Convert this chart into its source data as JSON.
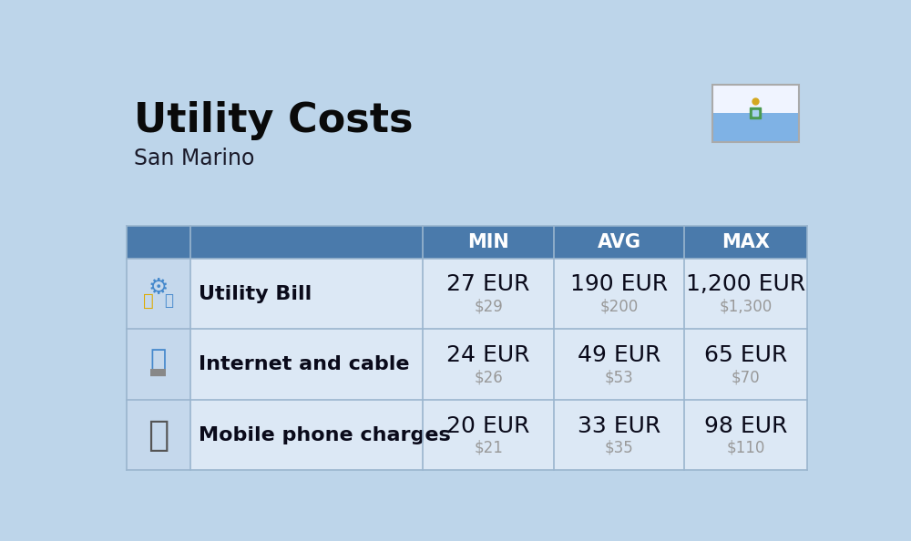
{
  "title": "Utility Costs",
  "subtitle": "San Marino",
  "background_color": "#bdd5ea",
  "header_color": "#4a7aab",
  "header_text_color": "#ffffff",
  "row_color_light": "#dce8f5",
  "icon_col_color": "#c5d8ec",
  "divider_color": "#9ab5ce",
  "title_color": "#0a0a0a",
  "subtitle_color": "#1a1a2a",
  "label_color": "#0a0a1a",
  "value_color": "#0a0a1a",
  "usd_color": "#999999",
  "rows": [
    {
      "label": "Utility Bill",
      "min_eur": "27 EUR",
      "min_usd": "$29",
      "avg_eur": "190 EUR",
      "avg_usd": "$200",
      "max_eur": "1,200 EUR",
      "max_usd": "$1,300"
    },
    {
      "label": "Internet and cable",
      "min_eur": "24 EUR",
      "min_usd": "$26",
      "avg_eur": "49 EUR",
      "avg_usd": "$53",
      "max_eur": "65 EUR",
      "max_usd": "$70"
    },
    {
      "label": "Mobile phone charges",
      "min_eur": "20 EUR",
      "min_usd": "$21",
      "avg_eur": "33 EUR",
      "avg_usd": "$35",
      "max_eur": "98 EUR",
      "max_usd": "$110"
    }
  ],
  "title_fontsize": 32,
  "subtitle_fontsize": 17,
  "header_fontsize": 15,
  "cell_eur_fontsize": 18,
  "cell_usd_fontsize": 12,
  "label_fontsize": 16,
  "flag_white": "#f0f4ff",
  "flag_blue": "#7fb2e5"
}
